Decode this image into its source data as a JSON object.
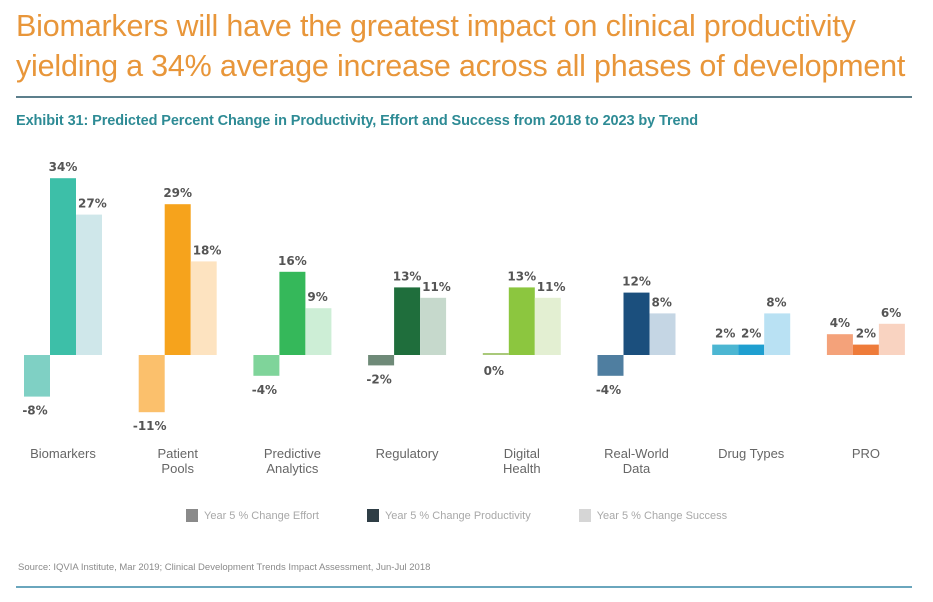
{
  "headline": {
    "line1": "Biomarkers will have the greatest impact on clinical productivity",
    "line2": "yielding a 34% average increase across all phases of development"
  },
  "exhibit_title": "Exhibit 31: Predicted Percent Change in Productivity, Effort and Success from 2018 to 2023 by Trend",
  "legend": [
    {
      "label": "Year 5 % Change Effort",
      "color": "#8a8a8a"
    },
    {
      "label": "Year 5 % Change Productivity",
      "color": "#2f3e46"
    },
    {
      "label": "Year 5 % Change Success",
      "color": "#d6d6d6"
    }
  ],
  "source": "Source: IQVIA Institute, Mar 2019; Clinical Development Trends Impact Assessment, Jun-Jul 2018",
  "chart_data": {
    "type": "bar",
    "title": "Exhibit 31: Predicted Percent Change in Productivity, Effort and Success from 2018 to 2023 by Trend",
    "xlabel": "",
    "ylabel": "",
    "unit": "%",
    "ylim": [
      -11,
      34
    ],
    "grid": false,
    "legend_position": "bottom",
    "categories": [
      {
        "line1": "Biomarkers",
        "line2": ""
      },
      {
        "line1": "Patient",
        "line2": "Pools"
      },
      {
        "line1": "Predictive",
        "line2": "Analytics"
      },
      {
        "line1": "Regulatory",
        "line2": ""
      },
      {
        "line1": "Digital",
        "line2": "Health"
      },
      {
        "line1": "Real-World",
        "line2": "Data"
      },
      {
        "line1": "Drug Types",
        "line2": ""
      },
      {
        "line1": "PRO",
        "line2": ""
      }
    ],
    "series": [
      {
        "name": "Year 5 % Change Effort",
        "values": [
          -8,
          -11,
          -4,
          -2,
          0,
          -4,
          2,
          4
        ]
      },
      {
        "name": "Year 5 % Change Productivity",
        "values": [
          34,
          29,
          16,
          13,
          13,
          12,
          2,
          2
        ]
      },
      {
        "name": "Year 5 % Change Success",
        "values": [
          27,
          18,
          9,
          11,
          11,
          8,
          8,
          6
        ]
      }
    ],
    "colors": [
      [
        "#7fd0c4",
        "#3dbfa8",
        "#cfe7ea"
      ],
      [
        "#fbc06c",
        "#f6a31c",
        "#fde3c0"
      ],
      [
        "#7fd49a",
        "#35b85a",
        "#cdeed6"
      ],
      [
        "#6f8a78",
        "#1f6e3c",
        "#c6d9cc"
      ],
      [
        "#a9c97a",
        "#8cc63f",
        "#e3efd2"
      ],
      [
        "#4f7ea0",
        "#1b4f7d",
        "#c5d6e4"
      ],
      [
        "#4cb6d2",
        "#1f9fd0",
        "#b9e1f3"
      ],
      [
        "#f4a27a",
        "#ee7b3a",
        "#f9d3c1"
      ]
    ]
  }
}
